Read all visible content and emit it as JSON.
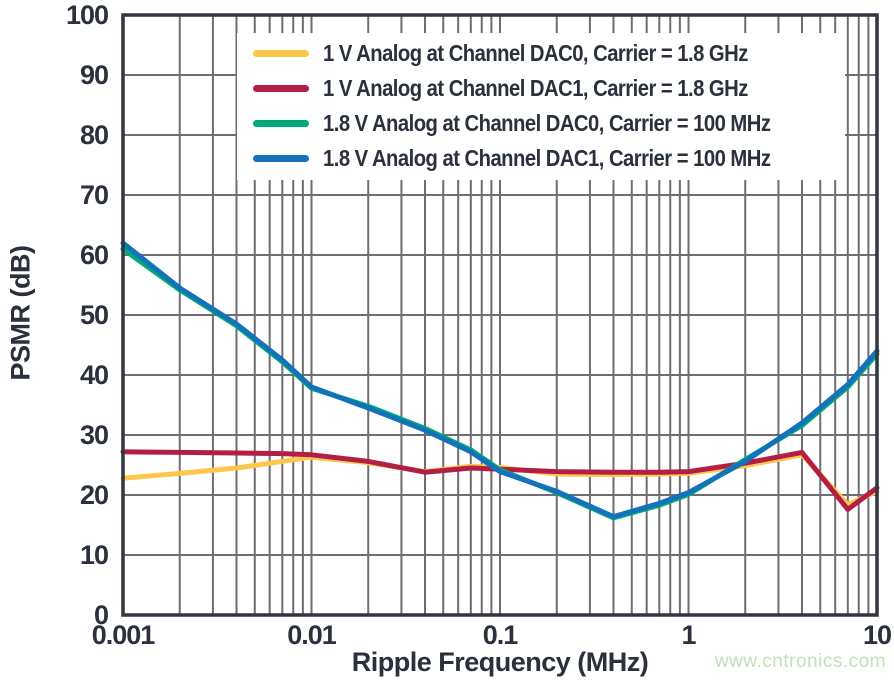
{
  "chart_data": {
    "type": "line",
    "title": "",
    "xlabel": "Ripple Frequency (MHz)",
    "ylabel": "PSMR (dB)",
    "x_scale": "log",
    "xlim": [
      0.001,
      10
    ],
    "ylim": [
      0,
      100
    ],
    "grid": "on",
    "legend_position": "top-inside-white-box",
    "x_tick_labels": [
      "0.001",
      "0.01",
      "0.1",
      "1",
      "10"
    ],
    "y_tick_labels": [
      "0",
      "10",
      "20",
      "30",
      "40",
      "50",
      "60",
      "70",
      "80",
      "90",
      "100"
    ],
    "x_mhz": [
      0.001,
      0.002,
      0.004,
      0.007,
      0.01,
      0.02,
      0.04,
      0.07,
      0.1,
      0.2,
      0.4,
      0.7,
      1,
      2,
      4,
      7,
      10
    ],
    "series": [
      {
        "name": "1 V Analog at Channel DAC0, Carrier = 1.8 GHz",
        "color": "#FDC74C",
        "values": [
          22.8,
          23.6,
          24.5,
          25.6,
          26.3,
          25.4,
          23.9,
          24.8,
          24.6,
          23.5,
          23.4,
          23.5,
          23.6,
          24.9,
          26.7,
          18.4,
          20.6
        ]
      },
      {
        "name": "1 V Analog at Channel DAC1, Carrier = 1.8 GHz",
        "color": "#B21E45",
        "values": [
          27.2,
          27.1,
          27.0,
          26.9,
          26.7,
          25.6,
          23.8,
          24.5,
          24.3,
          23.9,
          23.8,
          23.8,
          23.9,
          25.3,
          27.1,
          17.6,
          21.2
        ]
      },
      {
        "name": "1.8 V Analog at Channel DAC0, Carrier = 100 MHz",
        "color": "#00A87B",
        "values": [
          61.0,
          54.2,
          48.2,
          42.2,
          37.8,
          34.8,
          31.1,
          27.5,
          24.2,
          20.4,
          16.2,
          18.3,
          20.1,
          25.9,
          31.6,
          38.0,
          43.5
        ]
      },
      {
        "name": "1.8 V Analog at Channel DAC1, Carrier = 100 MHz",
        "color": "#1372B9",
        "values": [
          62.0,
          54.5,
          48.5,
          42.5,
          38.0,
          34.5,
          30.8,
          27.2,
          23.9,
          20.6,
          16.4,
          18.6,
          20.4,
          25.6,
          32.0,
          38.4,
          44.0
        ]
      }
    ]
  },
  "watermark": "www.cntronics.com",
  "colors": {
    "text": "#2A303C",
    "grid": "#6D6D72",
    "frame": "#30353F",
    "watermark": "#BFE3B5",
    "background": "#FFFFFF"
  }
}
